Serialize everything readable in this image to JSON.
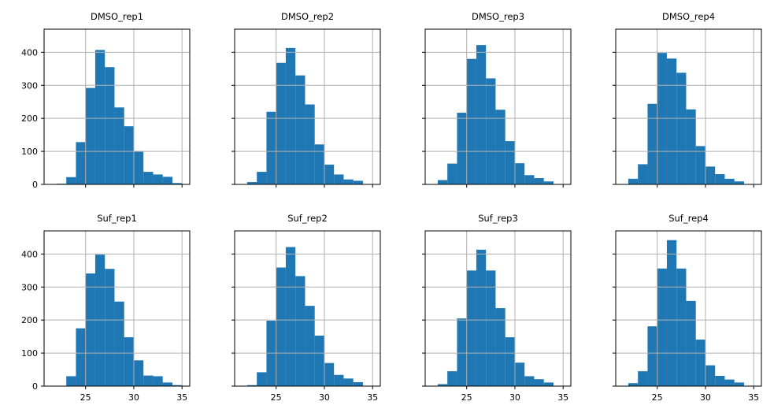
{
  "chart_data": {
    "type": "bar",
    "layout": "2x4 histogram grid, shared x and y axes",
    "grid": true,
    "bar_color": "#1f77b4",
    "xlim": [
      20.7,
      35.8
    ],
    "ylim": [
      0,
      470
    ],
    "xticks": [
      25,
      30,
      35
    ],
    "yticks": [
      0,
      100,
      200,
      300,
      400
    ],
    "panels": [
      {
        "title": "DMSO_rep1",
        "bins": [
          [
            22,
            23,
            2
          ],
          [
            23,
            24,
            22
          ],
          [
            24,
            25,
            128
          ],
          [
            25,
            26,
            292
          ],
          [
            26,
            27,
            407
          ],
          [
            27,
            28,
            355
          ],
          [
            28,
            29,
            233
          ],
          [
            29,
            30,
            176
          ],
          [
            30,
            31,
            101
          ],
          [
            31,
            32,
            38
          ],
          [
            32,
            33,
            30
          ],
          [
            33,
            34,
            23
          ],
          [
            34,
            35,
            4
          ]
        ]
      },
      {
        "title": "DMSO_rep2",
        "bins": [
          [
            22,
            23,
            7
          ],
          [
            23,
            24,
            38
          ],
          [
            24,
            25,
            220
          ],
          [
            25,
            26,
            368
          ],
          [
            26,
            27,
            413
          ],
          [
            27,
            28,
            330
          ],
          [
            28,
            29,
            242
          ],
          [
            29,
            30,
            121
          ],
          [
            30,
            31,
            60
          ],
          [
            31,
            32,
            30
          ],
          [
            32,
            33,
            15
          ],
          [
            33,
            34,
            11
          ]
        ]
      },
      {
        "title": "DMSO_rep3",
        "bins": [
          [
            22,
            23,
            13
          ],
          [
            23,
            24,
            63
          ],
          [
            24,
            25,
            217
          ],
          [
            25,
            26,
            380
          ],
          [
            26,
            27,
            422
          ],
          [
            27,
            28,
            321
          ],
          [
            28,
            29,
            226
          ],
          [
            29,
            30,
            131
          ],
          [
            30,
            31,
            64
          ],
          [
            31,
            32,
            28
          ],
          [
            32,
            33,
            19
          ],
          [
            33,
            34,
            9
          ]
        ]
      },
      {
        "title": "DMSO_rep4",
        "bins": [
          [
            22,
            23,
            17
          ],
          [
            23,
            24,
            61
          ],
          [
            24,
            25,
            244
          ],
          [
            25,
            26,
            398
          ],
          [
            26,
            27,
            381
          ],
          [
            27,
            28,
            338
          ],
          [
            28,
            29,
            227
          ],
          [
            29,
            30,
            116
          ],
          [
            30,
            31,
            54
          ],
          [
            31,
            32,
            31
          ],
          [
            32,
            33,
            17
          ],
          [
            33,
            34,
            9
          ]
        ]
      },
      {
        "title": "Suf_rep1",
        "bins": [
          [
            23,
            24,
            30
          ],
          [
            24,
            25,
            175
          ],
          [
            25,
            26,
            341
          ],
          [
            26,
            27,
            398
          ],
          [
            27,
            28,
            355
          ],
          [
            28,
            29,
            256
          ],
          [
            29,
            30,
            148
          ],
          [
            30,
            31,
            78
          ],
          [
            31,
            32,
            32
          ],
          [
            32,
            33,
            30
          ],
          [
            33,
            34,
            11
          ],
          [
            34,
            35,
            3
          ]
        ]
      },
      {
        "title": "Suf_rep2",
        "bins": [
          [
            22,
            23,
            3
          ],
          [
            23,
            24,
            42
          ],
          [
            24,
            25,
            198
          ],
          [
            25,
            26,
            359
          ],
          [
            26,
            27,
            421
          ],
          [
            27,
            28,
            333
          ],
          [
            28,
            29,
            243
          ],
          [
            29,
            30,
            153
          ],
          [
            30,
            31,
            70
          ],
          [
            31,
            32,
            34
          ],
          [
            32,
            33,
            23
          ],
          [
            33,
            34,
            12
          ]
        ]
      },
      {
        "title": "Suf_rep3",
        "bins": [
          [
            22,
            23,
            6
          ],
          [
            23,
            24,
            45
          ],
          [
            24,
            25,
            205
          ],
          [
            25,
            26,
            350
          ],
          [
            26,
            27,
            413
          ],
          [
            27,
            28,
            350
          ],
          [
            28,
            29,
            236
          ],
          [
            29,
            30,
            148
          ],
          [
            30,
            31,
            71
          ],
          [
            31,
            32,
            30
          ],
          [
            32,
            33,
            21
          ],
          [
            33,
            34,
            11
          ]
        ]
      },
      {
        "title": "Suf_rep4",
        "bins": [
          [
            22,
            23,
            9
          ],
          [
            23,
            24,
            45
          ],
          [
            24,
            25,
            181
          ],
          [
            25,
            26,
            356
          ],
          [
            26,
            27,
            442
          ],
          [
            27,
            28,
            356
          ],
          [
            28,
            29,
            258
          ],
          [
            29,
            30,
            141
          ],
          [
            30,
            31,
            63
          ],
          [
            31,
            32,
            31
          ],
          [
            32,
            33,
            20
          ],
          [
            33,
            34,
            11
          ]
        ]
      }
    ]
  }
}
